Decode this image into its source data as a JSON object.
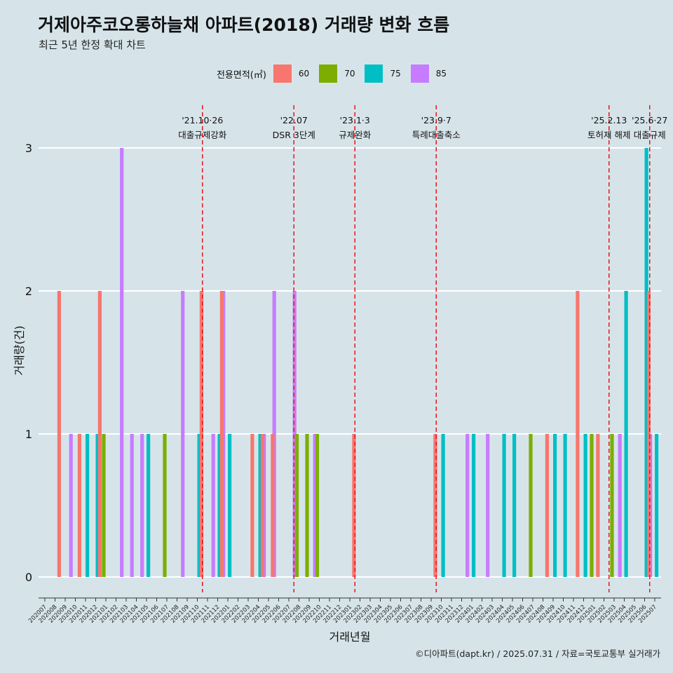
{
  "chart_data": {
    "type": "bar",
    "title": "거제아주코오롱하늘채 아파트(2018) 거래량 변화 흐름",
    "subtitle": "최근 5년 한정 확대 차트",
    "caption": "©디아파트(dapt.kr) / 2025.07.31 / 자료=국토교통부 실거래가",
    "xlabel": "거래년월",
    "ylabel": "거래량(건)",
    "ylim": [
      0,
      3
    ],
    "yticks": [
      0,
      1,
      2,
      3
    ],
    "grid": true,
    "legend_position": "top",
    "legend_title": "전용면적(㎡)",
    "categories": [
      "202007",
      "202008",
      "202009",
      "202010",
      "202011",
      "202012",
      "202101",
      "202102",
      "202103",
      "202104",
      "202105",
      "202106",
      "202107",
      "202108",
      "202109",
      "202110",
      "202111",
      "202112",
      "202201",
      "202202",
      "202203",
      "202204",
      "202205",
      "202206",
      "202207",
      "202208",
      "202209",
      "202210",
      "202211",
      "202212",
      "202301",
      "202302",
      "202303",
      "202304",
      "202305",
      "202306",
      "202307",
      "202308",
      "202309",
      "202310",
      "202311",
      "202312",
      "202401",
      "202402",
      "202403",
      "202404",
      "202405",
      "202406",
      "202407",
      "202408",
      "202409",
      "202410",
      "202411",
      "202412",
      "202501",
      "202502",
      "202503",
      "202504",
      "202505",
      "202506",
      "202507"
    ],
    "series": [
      {
        "name": "60",
        "color": "#F8766D",
        "values": [
          0,
          0,
          2,
          0,
          1,
          0,
          2,
          0,
          0,
          0,
          0,
          0,
          0,
          0,
          0,
          0,
          2,
          0,
          2,
          0,
          0,
          1,
          1,
          1,
          0,
          0,
          0,
          0,
          0,
          0,
          0,
          1,
          0,
          0,
          0,
          0,
          0,
          0,
          0,
          1,
          0,
          0,
          0,
          0,
          0,
          0,
          0,
          0,
          0,
          0,
          1,
          0,
          0,
          2,
          0,
          1,
          0,
          0,
          0,
          0,
          2
        ]
      },
      {
        "name": "70",
        "color": "#7CAE00",
        "values": [
          0,
          0,
          0,
          0,
          0,
          0,
          1,
          0,
          0,
          0,
          0,
          0,
          1,
          0,
          0,
          0,
          0,
          0,
          0,
          0,
          0,
          0,
          0,
          0,
          0,
          1,
          1,
          1,
          0,
          0,
          0,
          0,
          0,
          0,
          0,
          0,
          0,
          0,
          0,
          0,
          0,
          0,
          0,
          0,
          0,
          0,
          0,
          0,
          1,
          0,
          0,
          0,
          0,
          0,
          1,
          0,
          1,
          0,
          0,
          0,
          0
        ]
      },
      {
        "name": "75",
        "color": "#00BFC4",
        "values": [
          0,
          0,
          0,
          0,
          1,
          1,
          0,
          0,
          0,
          0,
          1,
          0,
          0,
          0,
          0,
          1,
          0,
          1,
          1,
          0,
          0,
          1,
          0,
          0,
          0,
          0,
          0,
          0,
          0,
          0,
          0,
          0,
          0,
          0,
          0,
          0,
          0,
          0,
          0,
          1,
          0,
          0,
          1,
          0,
          0,
          1,
          1,
          0,
          0,
          0,
          1,
          1,
          0,
          1,
          0,
          0,
          0,
          2,
          0,
          3,
          1
        ]
      },
      {
        "name": "85",
        "color": "#C77CFF",
        "values": [
          0,
          0,
          1,
          0,
          0,
          0,
          0,
          3,
          1,
          1,
          0,
          0,
          0,
          2,
          0,
          0,
          1,
          2,
          0,
          0,
          0,
          1,
          2,
          0,
          2,
          0,
          1,
          0,
          0,
          0,
          0,
          0,
          0,
          0,
          0,
          0,
          0,
          0,
          0,
          0,
          0,
          1,
          0,
          1,
          0,
          0,
          0,
          0,
          0,
          0,
          0,
          0,
          0,
          0,
          0,
          0,
          1,
          0,
          0,
          1,
          0
        ]
      }
    ],
    "annotations": [
      {
        "date": "'21.10·26",
        "label": "대출규제강화",
        "after": "202110"
      },
      {
        "date": "'22.07",
        "label": "DSR 3단계",
        "after": "202207"
      },
      {
        "date": "'23.1·3",
        "label": "규제완화",
        "after": "202301"
      },
      {
        "date": "'23.9·7",
        "label": "특례대출축소",
        "after": "202309"
      },
      {
        "date": "'25.2.13",
        "label": "토허제 해제",
        "after": "202502"
      },
      {
        "date": "'25.6·27",
        "label": "대출규제",
        "after": "202506"
      }
    ]
  }
}
